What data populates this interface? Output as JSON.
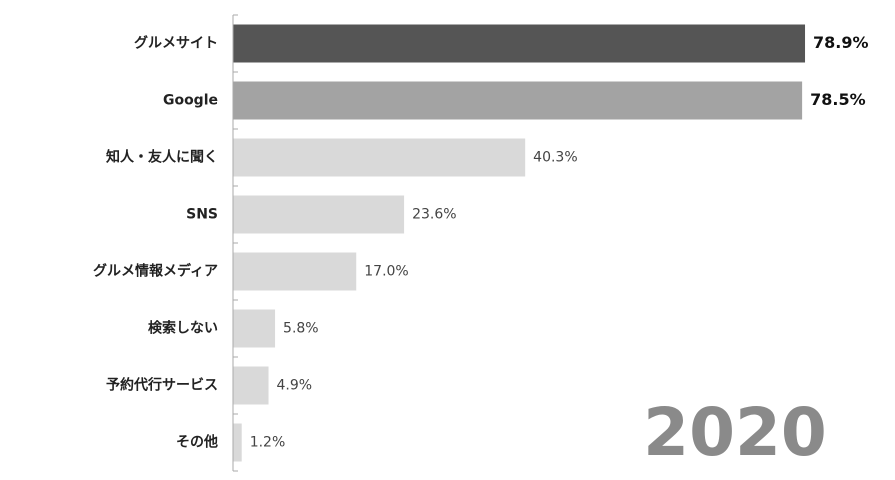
{
  "chart_data": {
    "type": "bar",
    "orientation": "horizontal",
    "categories": [
      "グルメサイト",
      "Google",
      "知人・友人に聞く",
      "SNS",
      "グルメ情報メディア",
      "検索しない",
      "予約代行サービス",
      "その他"
    ],
    "values": [
      78.9,
      78.5,
      40.3,
      23.6,
      17.0,
      5.8,
      4.9,
      1.2
    ],
    "value_labels": [
      "78.9%",
      "78.5%",
      "40.3%",
      "23.6%",
      "17.0%",
      "5.8%",
      "4.9%",
      "1.2%"
    ],
    "colors": [
      "#555555",
      "#a3a3a3",
      "#d9d9d9",
      "#d9d9d9",
      "#d9d9d9",
      "#d9d9d9",
      "#d9d9d9",
      "#d9d9d9"
    ],
    "annotation": "2020"
  }
}
